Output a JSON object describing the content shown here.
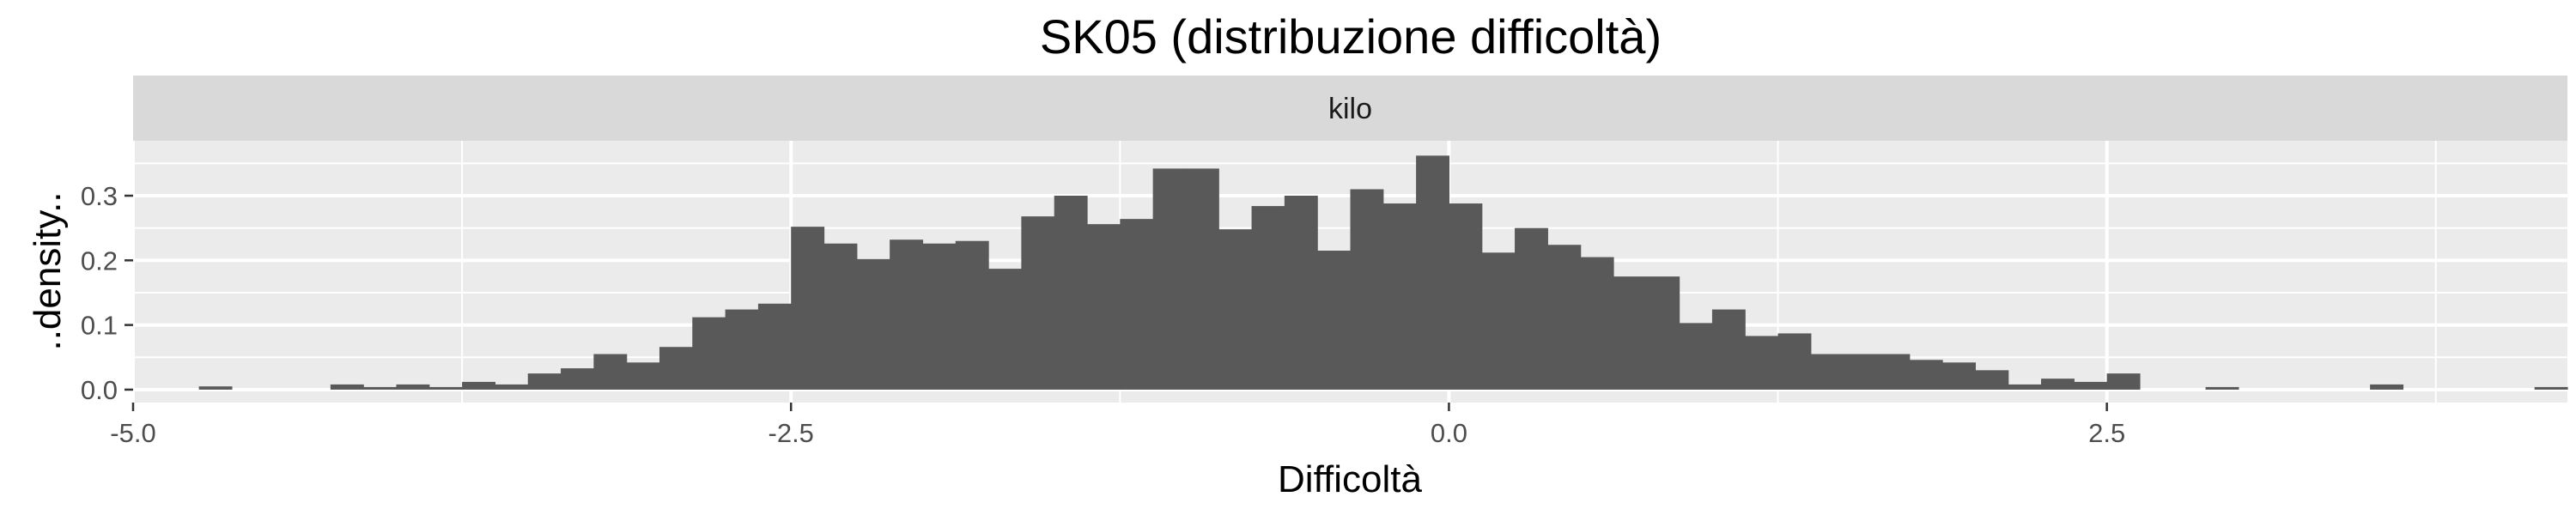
{
  "chart_data": {
    "type": "bar",
    "title": "SK05 (distribuzione difficoltà)",
    "facet": "kilo",
    "xlabel": "Difficoltà",
    "ylabel": "..density..",
    "xlim": [
      -5.0,
      4.25
    ],
    "ylim": [
      -0.02,
      0.385
    ],
    "x_ticks": [
      -5.0,
      -2.5,
      0.0,
      2.5
    ],
    "x_tick_labels": [
      "-5.0",
      "-2.5",
      "0.0",
      "2.5"
    ],
    "y_ticks": [
      0.0,
      0.1,
      0.2,
      0.3
    ],
    "y_tick_labels": [
      "0.0",
      "0.1",
      "0.2",
      "0.3"
    ],
    "bin_width": 0.125,
    "x_start": -4.75,
    "values": [
      0.005,
      0,
      0,
      0,
      0.008,
      0.004,
      0.008,
      0.004,
      0.012,
      0.008,
      0.025,
      0.033,
      0.055,
      0.042,
      0.066,
      0.112,
      0.124,
      0.133,
      0.252,
      0.226,
      0.202,
      0.232,
      0.226,
      0.23,
      0.187,
      0.268,
      0.3,
      0.256,
      0.264,
      0.342,
      0.342,
      0.248,
      0.284,
      0.3,
      0.215,
      0.31,
      0.288,
      0.362,
      0.288,
      0.212,
      0.25,
      0.224,
      0.205,
      0.175,
      0.175,
      0.103,
      0.124,
      0.083,
      0.087,
      0.055,
      0.055,
      0.055,
      0.046,
      0.042,
      0.03,
      0.008,
      0.017,
      0.012,
      0.025,
      0,
      0,
      0.004,
      0,
      0,
      0,
      0,
      0.008,
      0,
      0,
      0,
      0,
      0.004
    ],
    "grid": true,
    "colors": {
      "bar": "#595959",
      "panel": "#ebebeb",
      "strip": "#d9d9d9",
      "grid_major": "#ffffff"
    }
  }
}
